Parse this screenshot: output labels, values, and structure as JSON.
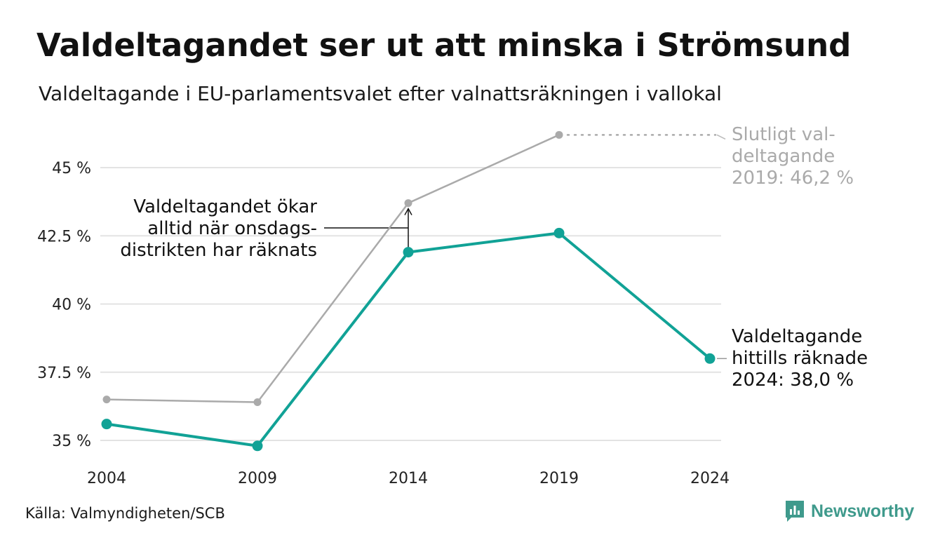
{
  "title": "Valdeltagandet ser ut att minska i Strömsund",
  "subtitle": "Valdeltagande i EU-parlamentsvalet efter valnattsräkningen i vallokal",
  "source": "Källa: Valmyndigheten/SCB",
  "brand": "Newsworthy",
  "colors": {
    "final": "#aaaaaa",
    "counted": "#11a296",
    "grid": "#e3e3e3"
  },
  "chart_data": {
    "type": "line",
    "x": [
      "2004",
      "2009",
      "2014",
      "2019",
      "2024"
    ],
    "ylim": [
      34.5,
      46.5
    ],
    "yticks": [
      35,
      37.5,
      40,
      42.5,
      45
    ],
    "ytick_labels": [
      "35 %",
      "37.5 %",
      "40 %",
      "42.5 %",
      "45 %"
    ],
    "grid": true,
    "series": [
      {
        "key": "final",
        "values": [
          36.5,
          36.4,
          43.7,
          46.2,
          null
        ]
      },
      {
        "key": "counted",
        "values": [
          35.6,
          34.8,
          41.9,
          42.6,
          38.0
        ]
      }
    ],
    "annotations": {
      "final_label": [
        "Slutligt val-",
        "deltagande",
        "2019: 46,2 %"
      ],
      "counted_label": [
        "Valdeltagande",
        "hittills räknade",
        "2024: 38,0 %"
      ],
      "gap_label": [
        "Valdeltagandet ökar",
        "alltid när onsdags-",
        "distrikten har räknats"
      ]
    }
  }
}
